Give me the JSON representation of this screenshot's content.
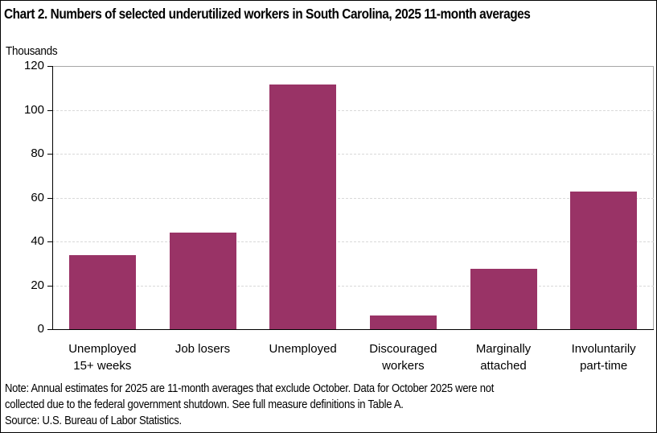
{
  "chart_data": {
    "type": "bar",
    "title": "Chart 2. Numbers of selected underutilized workers in South Carolina, 2025 11-month averages",
    "xlabel": "",
    "ylabel": "Thousands",
    "ylim": [
      0,
      120
    ],
    "yticks": [
      0,
      20,
      40,
      60,
      80,
      100,
      120
    ],
    "grid": true,
    "legend": null,
    "categories": [
      "Unemployed 15+ weeks",
      "Job losers",
      "Unemployed",
      "Discouraged workers",
      "Marginally attached",
      "Involuntarily part-time"
    ],
    "values": [
      33.8,
      44.0,
      111.6,
      6.2,
      27.5,
      62.8
    ],
    "bar_color": "#993366"
  },
  "title": "Chart 2. Numbers of selected underutilized workers in South Carolina, 2025 11-month averages",
  "unit_label": "Thousands",
  "yticks": [
    "0",
    "20",
    "40",
    "60",
    "80",
    "100",
    "120"
  ],
  "categories": [
    {
      "line1": "Unemployed",
      "line2": "15+ weeks"
    },
    {
      "line1": "Job losers",
      "line2": ""
    },
    {
      "line1": "Unemployed",
      "line2": ""
    },
    {
      "line1": "Discouraged",
      "line2": "workers"
    },
    {
      "line1": "Marginally",
      "line2": "attached"
    },
    {
      "line1": "Involuntarily",
      "line2": "part-time"
    }
  ],
  "note_line1": "Note: Annual estimates for 2025 are 11-month averages that exclude October. Data for October 2025 were not",
  "note_line2": "collected due to the federal government shutdown. See full measure definitions in Table A.",
  "source": "Source: U.S. Bureau of Labor Statistics."
}
